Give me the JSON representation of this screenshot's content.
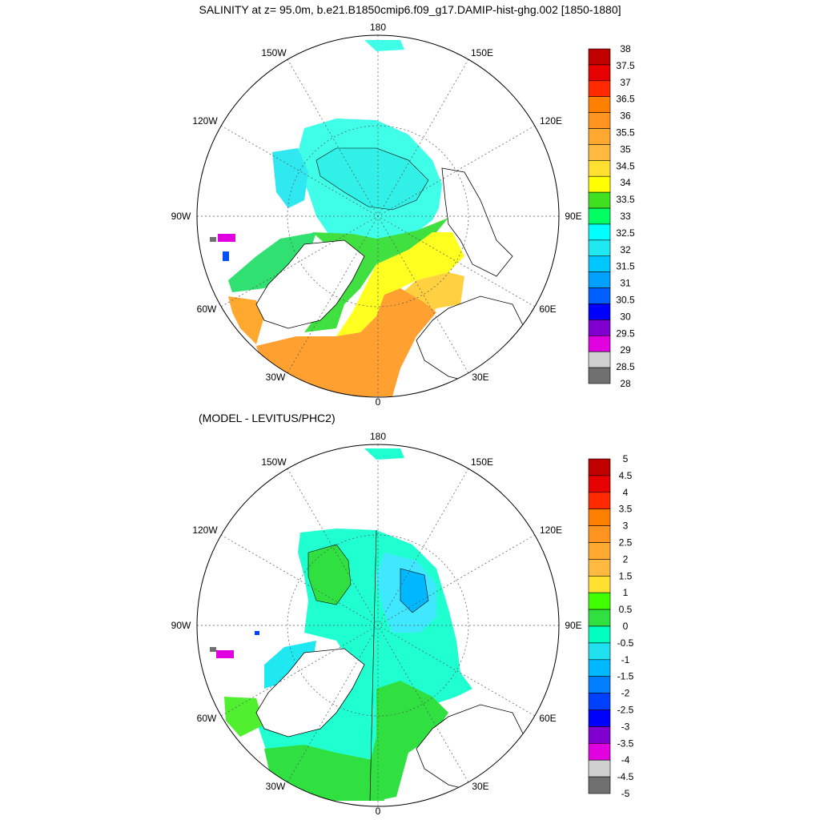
{
  "title": "SALINITY at z=  95.0m, b.e21.B1850cmip6.f09_g17.DAMIP-hist-ghg.002 [1850-1880]",
  "subtitle": "(MODEL - LEVITUS/PHC2)",
  "longitude_labels": [
    "180",
    "150E",
    "120E",
    "90E",
    "60E",
    "30E",
    "0",
    "30W",
    "60W",
    "90W",
    "120W",
    "150W"
  ],
  "colorbars": [
    {
      "labels": [
        "38",
        "37.5",
        "37",
        "36.5",
        "36",
        "35.5",
        "35",
        "34.5",
        "34",
        "33.5",
        "33",
        "32.5",
        "32",
        "31.5",
        "31",
        "30.5",
        "30",
        "29.5",
        "29",
        "28.5",
        "28"
      ],
      "colors": [
        "#c00000",
        "#e60000",
        "#ff2a00",
        "#ff8000",
        "#ff9420",
        "#ffa830",
        "#ffb840",
        "#ffe030",
        "#ffff00",
        "#40e020",
        "#00ff60",
        "#00ffff",
        "#20e8f0",
        "#00c8ff",
        "#00a0ff",
        "#0060ff",
        "#0000ff",
        "#8000d0",
        "#e000e0",
        "#d0d0d0",
        "#707070"
      ]
    },
    {
      "labels": [
        "5",
        "4.5",
        "4",
        "3.5",
        "3",
        "2.5",
        "2",
        "1.5",
        "1",
        "0.5",
        "0",
        "-0.5",
        "-1",
        "-1.5",
        "-2",
        "-2.5",
        "-3",
        "-3.5",
        "-4",
        "-4.5",
        "-5"
      ],
      "colors": [
        "#c00000",
        "#e60000",
        "#ff2a00",
        "#ff8000",
        "#ff9420",
        "#ffa830",
        "#ffb840",
        "#ffe030",
        "#40ff00",
        "#30e040",
        "#00ffc0",
        "#20e0f0",
        "#00b8ff",
        "#0080ff",
        "#0040ff",
        "#0000ff",
        "#8000d0",
        "#e000e0",
        "#d0d0d0",
        "#707070"
      ]
    }
  ],
  "legend_colors": {
    "ocean_top": "#40ffe0",
    "ocean_bottom": "#40f0e0",
    "land": "#ffffff"
  }
}
